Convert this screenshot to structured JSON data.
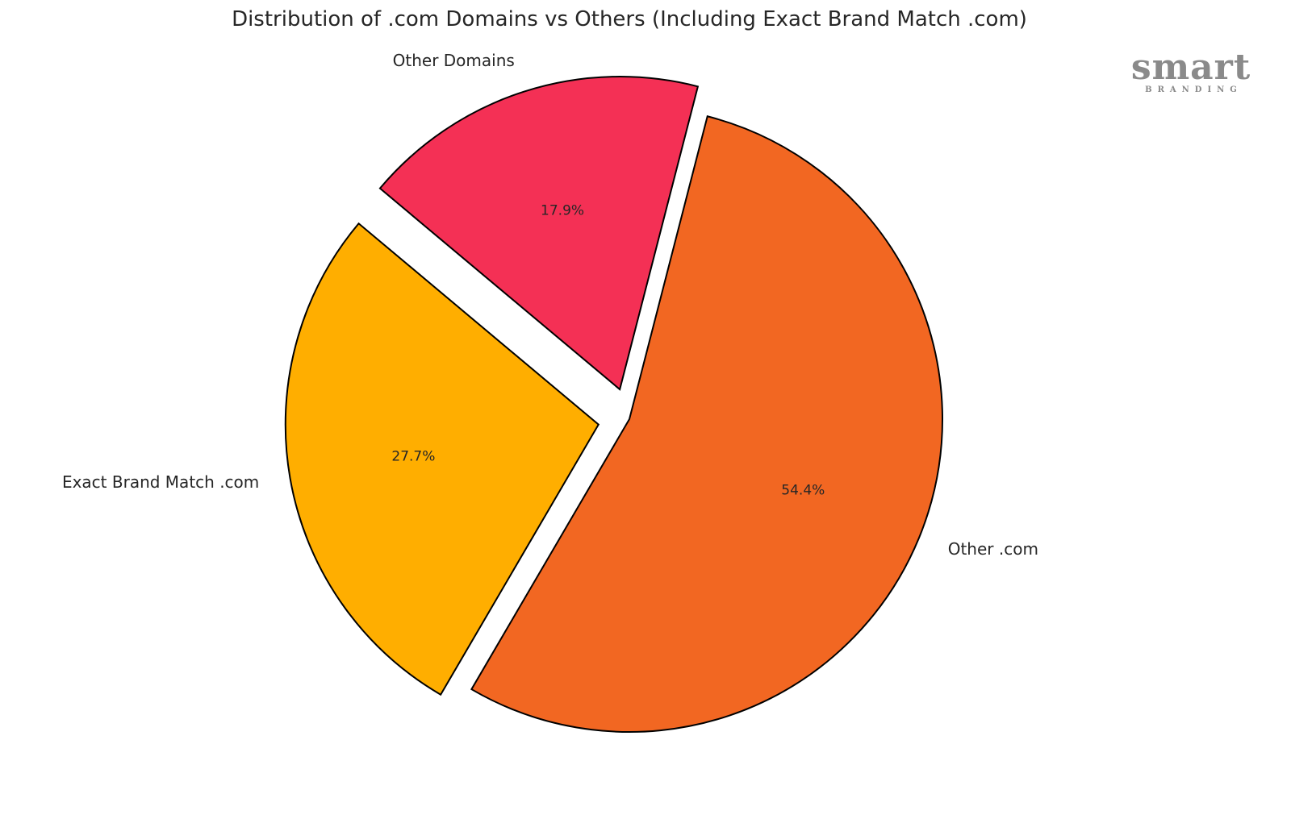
{
  "logo": {
    "word": "smart",
    "sub": "BRANDING"
  },
  "chart_data": {
    "type": "pie",
    "title": "Distribution of .com Domains vs Others (Including Exact Brand Match .com)",
    "slices": [
      {
        "label": "Exact Brand Match .com",
        "value": 27.7,
        "pct_label": "27.7%",
        "color": "#FFAE00",
        "explode": true
      },
      {
        "label": "Other .com",
        "value": 54.4,
        "pct_label": "54.4%",
        "color": "#F26722",
        "explode": false
      },
      {
        "label": "Other Domains",
        "value": 17.9,
        "pct_label": "17.9%",
        "color": "#F43055",
        "explode": true
      }
    ],
    "start_angle_deg": 140,
    "direction": "counterclockwise",
    "edge_color": "#000000",
    "legend": "none"
  }
}
